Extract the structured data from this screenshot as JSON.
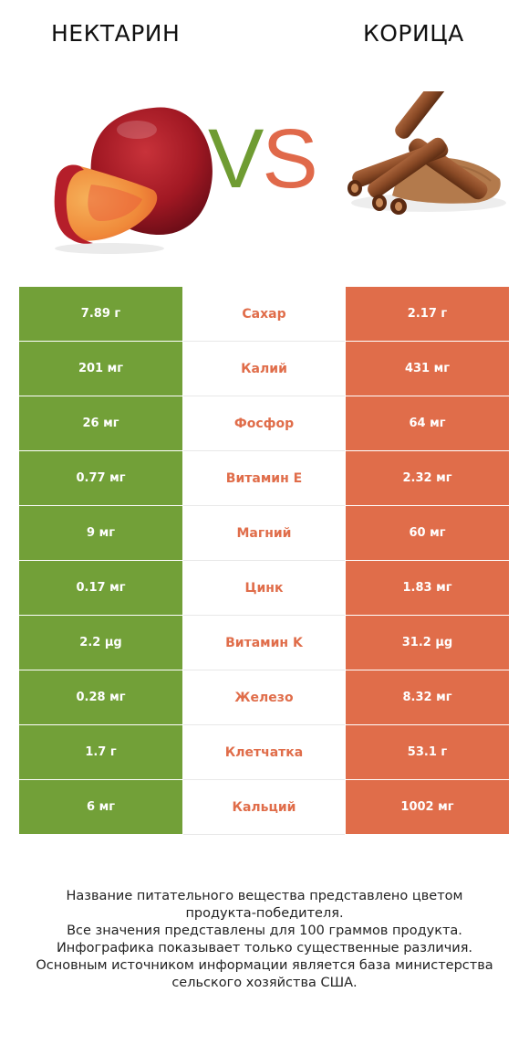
{
  "header": {
    "left_title": "НЕКТАРИН",
    "right_title": "КОРИЦА",
    "vs_v": "V",
    "vs_s": "S"
  },
  "colors": {
    "left_product": "#72a038",
    "right_product": "#e06d4a"
  },
  "chart_data": {
    "type": "table",
    "columns": [
      "НЕКТАРИН",
      "",
      "КОРИЦА"
    ],
    "rows": [
      {
        "nutrient": "Сахар",
        "left": "7.89 г",
        "right": "2.17 г",
        "winner": "right"
      },
      {
        "nutrient": "Калий",
        "left": "201 мг",
        "right": "431 мг",
        "winner": "right"
      },
      {
        "nutrient": "Фосфор",
        "left": "26 мг",
        "right": "64 мг",
        "winner": "right"
      },
      {
        "nutrient": "Витамин E",
        "left": "0.77 мг",
        "right": "2.32 мг",
        "winner": "right"
      },
      {
        "nutrient": "Магний",
        "left": "9 мг",
        "right": "60 мг",
        "winner": "right"
      },
      {
        "nutrient": "Цинк",
        "left": "0.17 мг",
        "right": "1.83 мг",
        "winner": "right"
      },
      {
        "nutrient": "Витамин K",
        "left": "2.2 µg",
        "right": "31.2 µg",
        "winner": "right"
      },
      {
        "nutrient": "Железо",
        "left": "0.28 мг",
        "right": "8.32 мг",
        "winner": "right"
      },
      {
        "nutrient": "Клетчатка",
        "left": "1.7 г",
        "right": "53.1 г",
        "winner": "right"
      },
      {
        "nutrient": "Кальций",
        "left": "6 мг",
        "right": "1002 мг",
        "winner": "right"
      }
    ]
  },
  "notes": [
    "Название питательного вещества представлено цветом",
    "продукта-победителя.",
    "Все значения представлены для 100 граммов продукта.",
    "Инфографика показывает только существенные различия.",
    "Основным источником информации является база министерства",
    "сельского хозяйства США."
  ]
}
